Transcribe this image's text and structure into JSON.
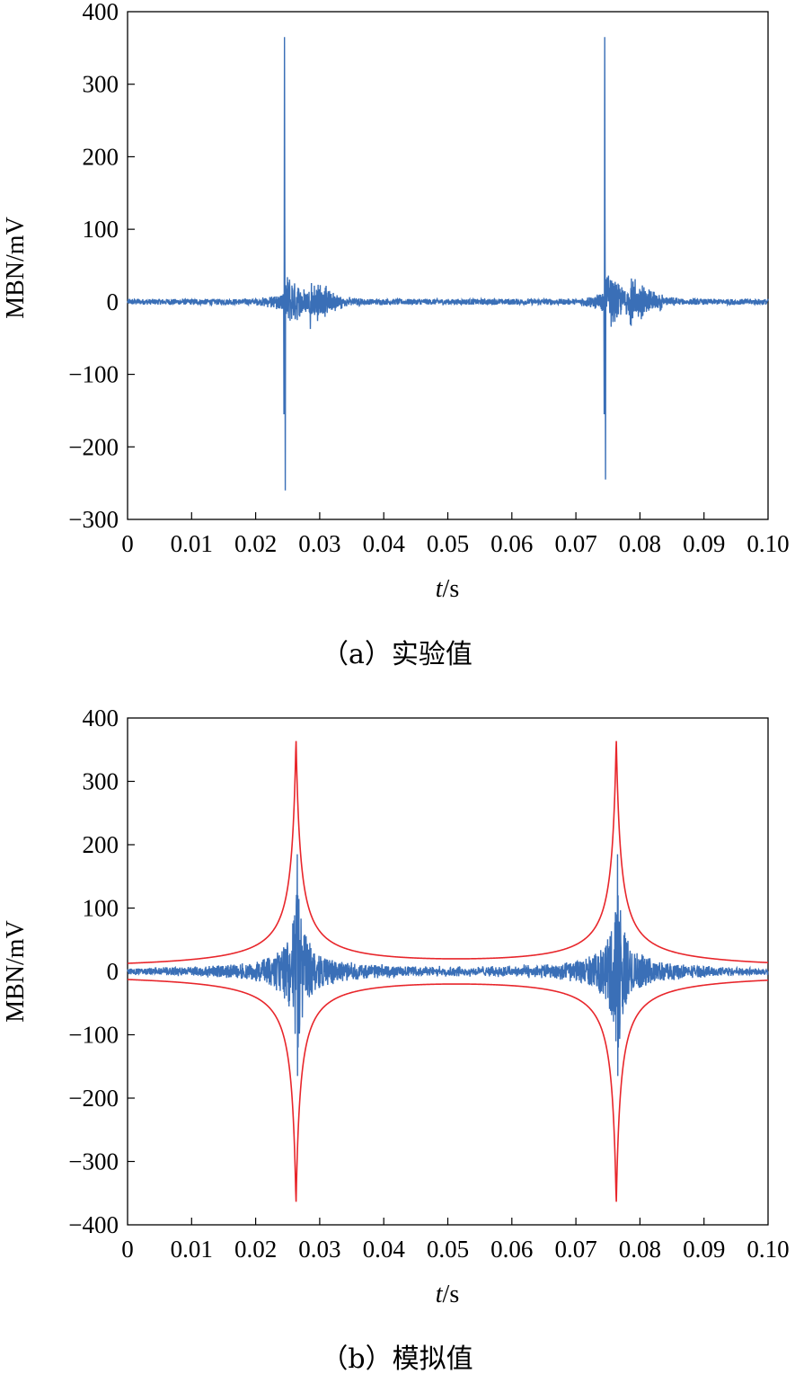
{
  "chart_data": [
    {
      "type": "line",
      "caption": "（a）实验值",
      "xlabel_italic": "t",
      "xlabel_unit": "/s",
      "ylabel": "MBN/mV",
      "xlim": [
        0,
        0.1
      ],
      "ylim": [
        -300,
        400
      ],
      "x_ticks": [
        "0",
        "0.01",
        "0.02",
        "0.03",
        "0.04",
        "0.05",
        "0.06",
        "0.07",
        "0.08",
        "0.09",
        "0.10"
      ],
      "y_ticks": [
        "400",
        "300",
        "200",
        "100",
        "0",
        "−100",
        "−200",
        "−300"
      ],
      "grid": false,
      "series": [
        {
          "color": "#3a6fb7",
          "bursts": [
            {
              "center": 0.0245,
              "peak_pos": 365,
              "peak_neg": -260
            },
            {
              "center": 0.0745,
              "peak_pos": 365,
              "peak_neg": -245
            }
          ],
          "baseline_noise": 4
        }
      ]
    },
    {
      "type": "line",
      "caption": "（b）模拟值",
      "xlabel_italic": "t",
      "xlabel_unit": "/s",
      "ylabel": "MBN/mV",
      "xlim": [
        0,
        0.1
      ],
      "ylim": [
        -400,
        400
      ],
      "x_ticks": [
        "0",
        "0.01",
        "0.02",
        "0.03",
        "0.04",
        "0.05",
        "0.06",
        "0.07",
        "0.08",
        "0.09",
        "0.10"
      ],
      "y_ticks": [
        "400",
        "300",
        "200",
        "100",
        "0",
        "−100",
        "−200",
        "−300",
        "−400"
      ],
      "grid": false,
      "series": [
        {
          "color": "#3a6fb7",
          "bursts": [
            {
              "center": 0.0265,
              "peak_pos": 185,
              "peak_neg": -165
            },
            {
              "center": 0.0765,
              "peak_pos": 185,
              "peak_neg": -165
            }
          ]
        },
        {
          "color": "#e8262b",
          "envelope_centers": [
            0.0263,
            0.0763
          ],
          "envelope_amplitude": 365
        }
      ]
    }
  ]
}
